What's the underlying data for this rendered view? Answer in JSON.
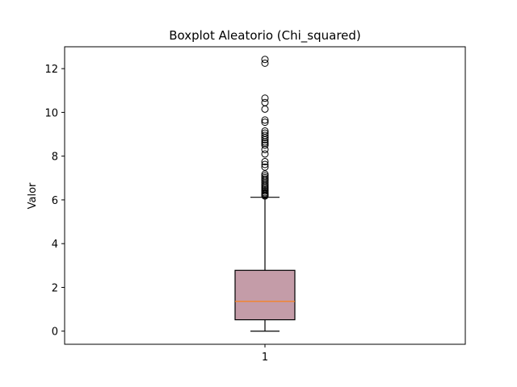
{
  "chart_data": {
    "type": "boxplot",
    "title": "Boxplot Aleatorio (Chi_squared)",
    "xlabel": "",
    "ylabel": "Valor",
    "categories": [
      "1"
    ],
    "ylim": [
      -0.6,
      13.0
    ],
    "yticks": [
      0,
      2,
      4,
      6,
      8,
      10,
      12
    ],
    "grid": false,
    "box": {
      "q1": 0.52,
      "median": 1.36,
      "q3": 2.78,
      "whisker_low": 0.0,
      "whisker_high": 6.12,
      "fill_color": "#c49ca8",
      "median_color": "#ff7f0e",
      "edge_color": "#000000"
    },
    "outliers": [
      6.18,
      6.22,
      6.28,
      6.33,
      6.4,
      6.46,
      6.52,
      6.58,
      6.65,
      6.72,
      6.8,
      6.88,
      6.95,
      7.02,
      7.1,
      7.18,
      7.5,
      7.62,
      7.75,
      8.1,
      8.3,
      8.5,
      8.58,
      8.65,
      8.75,
      8.85,
      8.95,
      9.05,
      9.15,
      9.55,
      9.65,
      10.15,
      10.45,
      10.65,
      12.25,
      12.42
    ]
  }
}
